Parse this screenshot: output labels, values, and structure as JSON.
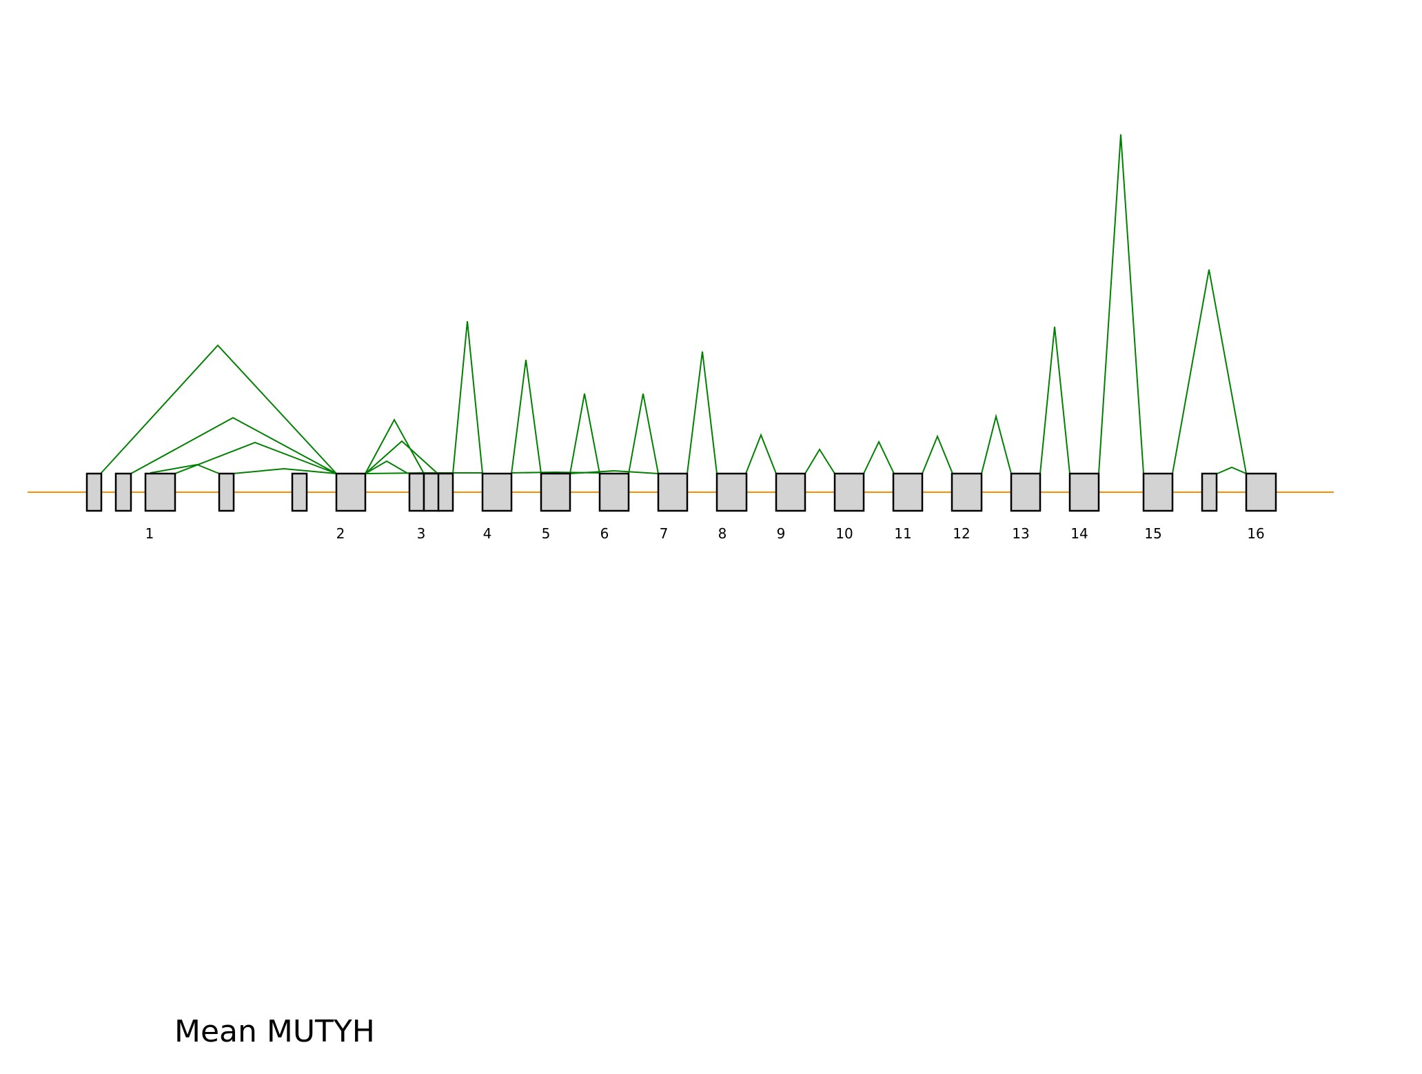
{
  "title": "Mean MUTYH",
  "colors": {
    "background": "#ffffff",
    "exon_fill": "#d3d3d3",
    "exon_stroke": "#000000",
    "intron_line": "#ff8c00",
    "junction_arc": "#008000",
    "text": "#000000"
  },
  "exon_labels": [
    "1",
    "2",
    "3",
    "4",
    "5",
    "6",
    "7",
    "8",
    "9",
    "10",
    "11",
    "12",
    "13",
    "14",
    "15",
    "16"
  ],
  "chart_data": {
    "type": "sashimi",
    "gene": "MUTYH",
    "title": "Mean MUTYH",
    "exon_count": 16,
    "exon_labels": [
      "1",
      "2",
      "3",
      "4",
      "5",
      "6",
      "7",
      "8",
      "9",
      "10",
      "11",
      "12",
      "13",
      "14",
      "15",
      "16"
    ],
    "junctions": [
      {
        "from": "1",
        "to": "2",
        "relative_height": 0.37
      },
      {
        "from": "1",
        "to": "2",
        "relative_height": 0.16
      },
      {
        "from": "1",
        "to": "2",
        "relative_height": 0.09
      },
      {
        "from": "1",
        "to": "2",
        "relative_height": 0.02
      },
      {
        "from": "1",
        "to": "2",
        "relative_height": 0.01
      },
      {
        "from": "2",
        "to": "3",
        "relative_height": 0.15
      },
      {
        "from": "2",
        "to": "3",
        "relative_height": 0.09
      },
      {
        "from": "2",
        "to": "3",
        "relative_height": 0.03
      },
      {
        "from": "2",
        "to": "4",
        "relative_height": 0.0
      },
      {
        "from": "3",
        "to": "4",
        "relative_height": 0.43
      },
      {
        "from": "4",
        "to": "5",
        "relative_height": 0.32
      },
      {
        "from": "4",
        "to": "6",
        "relative_height": 0.0
      },
      {
        "from": "5",
        "to": "6",
        "relative_height": 0.23
      },
      {
        "from": "5",
        "to": "7",
        "relative_height": 0.0
      },
      {
        "from": "6",
        "to": "7",
        "relative_height": 0.23
      },
      {
        "from": "7",
        "to": "8",
        "relative_height": 0.35
      },
      {
        "from": "8",
        "to": "9",
        "relative_height": 0.11
      },
      {
        "from": "9",
        "to": "10",
        "relative_height": 0.07
      },
      {
        "from": "10",
        "to": "11",
        "relative_height": 0.09
      },
      {
        "from": "11",
        "to": "12",
        "relative_height": 0.1
      },
      {
        "from": "12",
        "to": "13",
        "relative_height": 0.16
      },
      {
        "from": "13",
        "to": "14",
        "relative_height": 0.42
      },
      {
        "from": "14",
        "to": "15",
        "relative_height": 1.0
      },
      {
        "from": "15",
        "to": "16",
        "relative_height": 0.57
      },
      {
        "from": "15",
        "to": "16",
        "relative_height": 0.02
      }
    ]
  }
}
